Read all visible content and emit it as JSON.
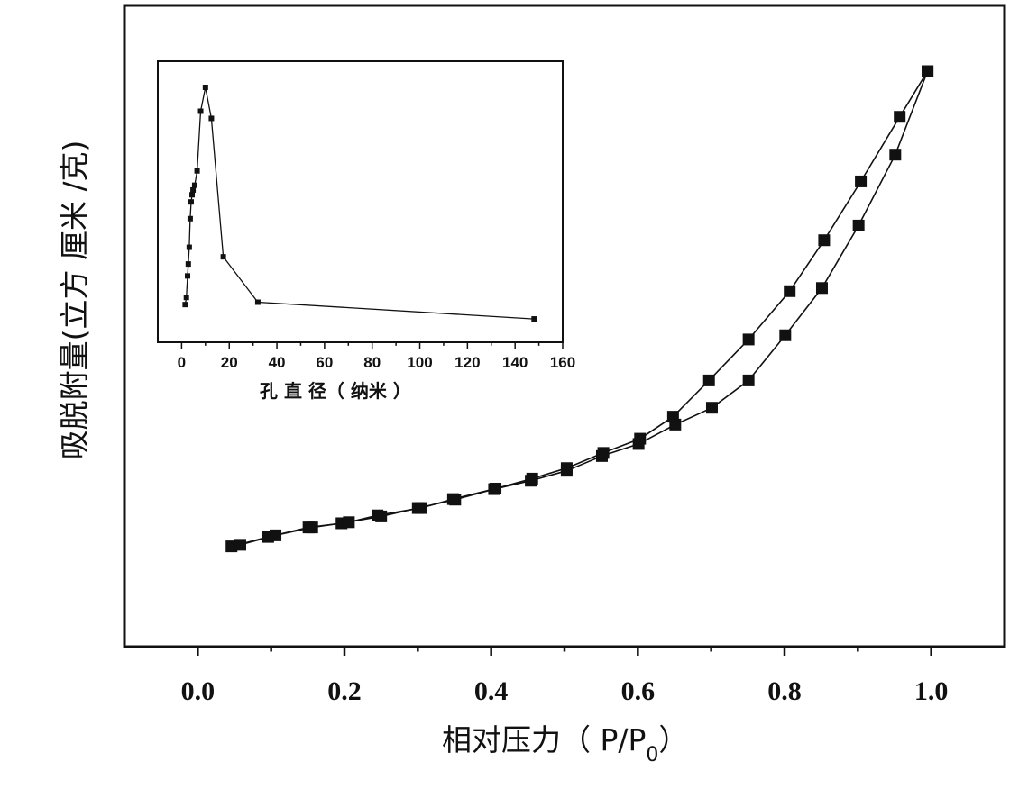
{
  "chart_data": [
    {
      "type": "line",
      "xlabel": "相对压力（ P/P",
      "xlabel_sub": "0",
      "xlabel_close": "）",
      "ylabel": "吸脱附量(立方 厘米 /克)",
      "xlim": [
        -0.1,
        1.1
      ],
      "ylim": [
        0,
        1
      ],
      "xticks": [
        "0.0",
        "0.2",
        "0.4",
        "0.6",
        "0.8",
        "1.0"
      ],
      "xtick_values": [
        0.0,
        0.2,
        0.4,
        0.6,
        0.8,
        1.0
      ],
      "yticks_shown": false,
      "marker": "square",
      "series": [
        {
          "x": [
            0.046,
            0.096,
            0.151,
            0.196,
            0.25,
            0.3,
            0.351,
            0.404,
            0.454,
            0.503,
            0.551,
            0.601,
            0.651,
            0.701,
            0.751,
            0.801,
            0.851,
            0.901,
            0.951,
            0.995
          ],
          "y": [
            0.095,
            0.113,
            0.131,
            0.139,
            0.152,
            0.168,
            0.184,
            0.204,
            0.22,
            0.239,
            0.267,
            0.29,
            0.327,
            0.359,
            0.411,
            0.497,
            0.587,
            0.706,
            0.841,
            1.0
          ]
        },
        {
          "x": [
            0.995,
            0.957,
            0.904,
            0.854,
            0.807,
            0.751,
            0.697,
            0.648,
            0.603,
            0.553,
            0.503,
            0.456,
            0.406,
            0.348,
            0.304,
            0.245,
            0.206,
            0.156,
            0.106,
            0.058
          ],
          "y": [
            1.0,
            0.913,
            0.79,
            0.678,
            0.581,
            0.489,
            0.411,
            0.342,
            0.3,
            0.273,
            0.244,
            0.224,
            0.205,
            0.185,
            0.168,
            0.154,
            0.141,
            0.131,
            0.116,
            0.098
          ]
        }
      ]
    },
    {
      "type": "line",
      "xlabel": "孔 直 径（ 纳米 ）",
      "ylabel": "",
      "xlim": [
        -10,
        160
      ],
      "ylim": [
        0,
        1
      ],
      "xticks": [
        "0",
        "20",
        "40",
        "60",
        "80",
        "100",
        "120",
        "140",
        "160"
      ],
      "xtick_values": [
        0,
        20,
        40,
        60,
        80,
        100,
        120,
        140,
        160
      ],
      "yticks_shown": false,
      "marker": "square",
      "series": [
        {
          "x": [
            1.5,
            2.0,
            2.5,
            2.8,
            3.2,
            3.6,
            4.0,
            4.4,
            4.8,
            5.5,
            6.5,
            8.0,
            10.0,
            12.5,
            17.5,
            32.0,
            148.0
          ],
          "y": [
            0.09,
            0.12,
            0.21,
            0.26,
            0.33,
            0.45,
            0.52,
            0.55,
            0.57,
            0.59,
            0.65,
            0.9,
            1.0,
            0.87,
            0.29,
            0.1,
            0.03
          ]
        }
      ]
    }
  ]
}
